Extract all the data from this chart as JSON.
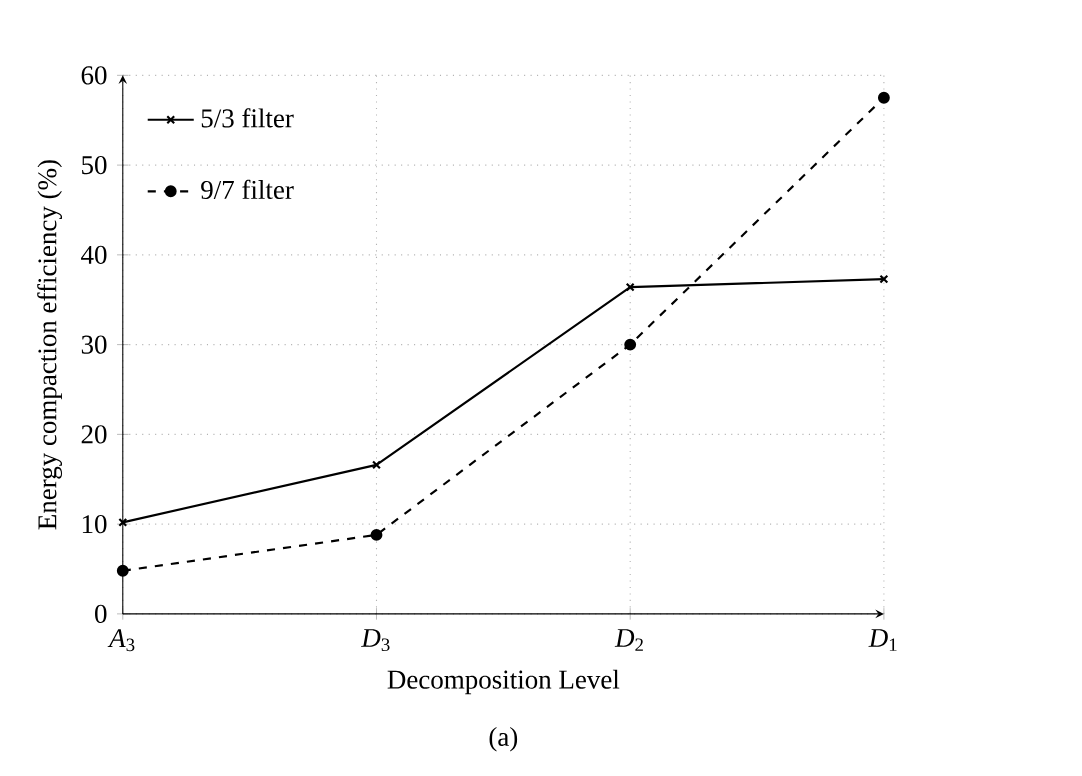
{
  "chart_data": {
    "type": "line",
    "xlabel": "Decomposition Level",
    "ylabel": "Energy compaction efficiency (%)",
    "categories": [
      "*A*$_{3}$",
      "*D*$_{3}$",
      "*D*$_{2}$",
      "*D*$_{1}$"
    ],
    "series": [
      {
        "name": "5/3 filter",
        "color": "#000000",
        "values": [
          10.2,
          16.6,
          36.4,
          37.3
        ],
        "marker": "cross",
        "line_style": "solid"
      },
      {
        "name": "9/7 filter",
        "color": "#000000",
        "values": [
          4.8,
          8.8,
          30.0,
          57.5
        ],
        "marker": "circle",
        "line_style": "dashed"
      }
    ],
    "ylim": [
      0,
      60
    ],
    "yticks": [
      0,
      10,
      20,
      30,
      40,
      50,
      60
    ],
    "grid": true,
    "legend": "top left",
    "annotations": [
      "(a)"
    ]
  }
}
